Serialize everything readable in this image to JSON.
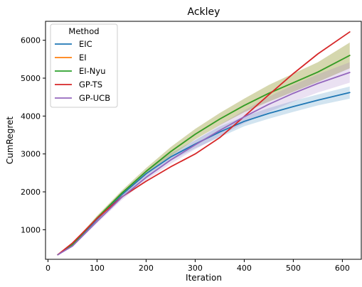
{
  "chart_data": {
    "type": "line",
    "title": "Ackley",
    "xlabel": "Iteration",
    "ylabel": "CumRegret",
    "xlim": [
      -5,
      640
    ],
    "ylim": [
      220,
      6500
    ],
    "xticks": [
      0,
      100,
      200,
      300,
      400,
      500,
      600
    ],
    "yticks": [
      1000,
      2000,
      3000,
      4000,
      5000,
      6000
    ],
    "grid": false,
    "legend": {
      "title": "Method",
      "placement": "top-left"
    },
    "series": [
      {
        "name": "EIC",
        "color": "#1f77b4",
        "x": [
          20,
          50,
          100,
          150,
          200,
          250,
          300,
          350,
          400,
          450,
          500,
          550,
          615
        ],
        "y": [
          340,
          600,
          1280,
          1920,
          2480,
          2920,
          3260,
          3580,
          3860,
          4070,
          4250,
          4420,
          4620
        ],
        "band_lower": [
          330,
          580,
          1230,
          1850,
          2400,
          2820,
          3150,
          3440,
          3730,
          3930,
          4110,
          4280,
          4460
        ],
        "band_upper": [
          350,
          620,
          1330,
          1990,
          2560,
          3020,
          3370,
          3720,
          3990,
          4210,
          4400,
          4570,
          4780
        ]
      },
      {
        "name": "EI",
        "color": "#ff7f0e",
        "x": [
          20,
          50,
          100,
          150,
          200,
          250,
          300,
          350,
          400,
          450,
          500,
          550,
          615
        ],
        "y": [
          340,
          610,
          1310,
          1960,
          2540,
          3060,
          3520,
          3920,
          4280,
          4600,
          4880,
          5160,
          5600
        ],
        "band_lower": [
          330,
          580,
          1250,
          1890,
          2450,
          2940,
          3380,
          3760,
          4100,
          4380,
          4640,
          4900,
          5260
        ],
        "band_upper": [
          350,
          640,
          1370,
          2030,
          2630,
          3180,
          3660,
          4080,
          4460,
          4820,
          5120,
          5420,
          5940
        ]
      },
      {
        "name": "EI-Nyu",
        "color": "#2ca02c",
        "x": [
          20,
          50,
          100,
          150,
          200,
          250,
          300,
          350,
          400,
          450,
          500,
          550,
          615
        ],
        "y": [
          340,
          610,
          1310,
          1960,
          2540,
          3060,
          3520,
          3920,
          4280,
          4600,
          4880,
          5160,
          5600
        ],
        "band_lower": [
          330,
          580,
          1250,
          1890,
          2450,
          2940,
          3380,
          3760,
          4100,
          4380,
          4640,
          4900,
          5260
        ],
        "band_upper": [
          350,
          640,
          1370,
          2030,
          2630,
          3180,
          3660,
          4080,
          4460,
          4820,
          5120,
          5420,
          5940
        ]
      },
      {
        "name": "GP-TS",
        "color": "#d62728",
        "x": [
          20,
          50,
          100,
          150,
          200,
          250,
          300,
          350,
          400,
          450,
          500,
          550,
          615
        ],
        "y": [
          340,
          650,
          1300,
          1860,
          2280,
          2660,
          3000,
          3430,
          3990,
          4560,
          5120,
          5640,
          6220
        ]
      },
      {
        "name": "GP-UCB",
        "color": "#9467bd",
        "x": [
          20,
          50,
          100,
          150,
          200,
          250,
          300,
          350,
          400,
          450,
          500,
          550,
          615
        ],
        "y": [
          340,
          570,
          1220,
          1850,
          2380,
          2840,
          3240,
          3620,
          3980,
          4310,
          4600,
          4860,
          5150
        ],
        "band_lower": [
          330,
          550,
          1170,
          1780,
          2300,
          2740,
          3120,
          3470,
          3810,
          4110,
          4380,
          4620,
          4880
        ],
        "band_upper": [
          350,
          590,
          1270,
          1920,
          2460,
          2940,
          3360,
          3770,
          4150,
          4510,
          4820,
          5100,
          5420
        ]
      }
    ]
  }
}
